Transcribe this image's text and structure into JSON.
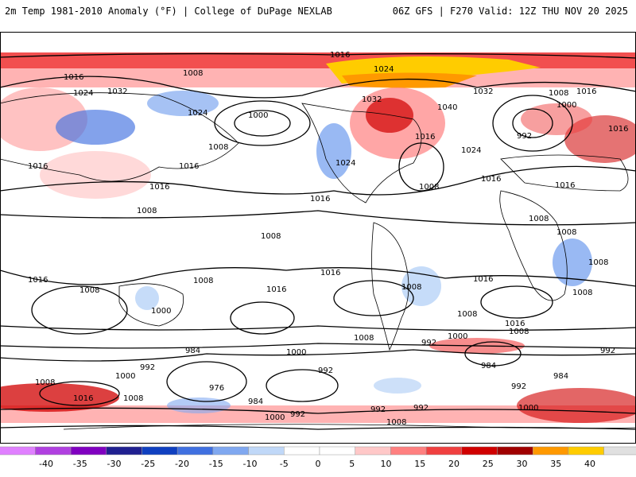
{
  "header": {
    "left_title": "2m Temp 1981-2010 Anomaly (°F) | College of DuPage NEXLAB",
    "right_title": "06Z GFS | F270 Valid: 12Z THU NOV 20 2025"
  },
  "colorbar": {
    "ticks": [
      "-40",
      "-35",
      "-30",
      "-25",
      "-20",
      "-15",
      "-10",
      "-5",
      "0",
      "5",
      "10",
      "15",
      "20",
      "25",
      "30",
      "35",
      "40"
    ],
    "colors": [
      "#e080ff",
      "#b040e0",
      "#8000c0",
      "#202090",
      "#1040c0",
      "#4070e0",
      "#80a8f0",
      "#c0d8f8",
      "#ffffff",
      "#ffffff",
      "#ffc8c8",
      "#ff8080",
      "#f04040",
      "#d00000",
      "#a00000",
      "#ff9900",
      "#ffcc00",
      "#e0e0e0"
    ]
  },
  "map": {
    "isobar_labels": [
      {
        "text": "1016"
      },
      {
        "text": "1024"
      },
      {
        "text": "1032"
      },
      {
        "text": "1016"
      },
      {
        "text": "1008"
      },
      {
        "text": "1024"
      },
      {
        "text": "1000"
      },
      {
        "text": "1024"
      },
      {
        "text": "1032"
      },
      {
        "text": "1040"
      },
      {
        "text": "1032"
      },
      {
        "text": "1016"
      },
      {
        "text": "1008"
      },
      {
        "text": "1000"
      },
      {
        "text": "1016"
      },
      {
        "text": "992"
      },
      {
        "text": "1024"
      },
      {
        "text": "1016"
      },
      {
        "text": "1024"
      },
      {
        "text": "1016"
      },
      {
        "text": "1008"
      },
      {
        "text": "1016"
      },
      {
        "text": "1016"
      },
      {
        "text": "1016"
      },
      {
        "text": "1008"
      },
      {
        "text": "1016"
      },
      {
        "text": "1008"
      },
      {
        "text": "1008"
      },
      {
        "text": "1008"
      },
      {
        "text": "1008"
      },
      {
        "text": "1008"
      },
      {
        "text": "1016"
      },
      {
        "text": "1016"
      },
      {
        "text": "1008"
      },
      {
        "text": "1016"
      },
      {
        "text": "1000"
      },
      {
        "text": "1008"
      },
      {
        "text": "1016"
      },
      {
        "text": "1008"
      },
      {
        "text": "1016"
      },
      {
        "text": "1016"
      },
      {
        "text": "1008"
      },
      {
        "text": "1008"
      },
      {
        "text": "1008"
      },
      {
        "text": "984"
      },
      {
        "text": "1000"
      },
      {
        "text": "1000"
      },
      {
        "text": "992"
      },
      {
        "text": "992"
      },
      {
        "text": "984"
      },
      {
        "text": "992"
      },
      {
        "text": "984"
      },
      {
        "text": "1000"
      },
      {
        "text": "992"
      },
      {
        "text": "976"
      },
      {
        "text": "1008"
      },
      {
        "text": "1016"
      },
      {
        "text": "1008"
      },
      {
        "text": "984"
      },
      {
        "text": "992"
      },
      {
        "text": "992"
      },
      {
        "text": "992"
      },
      {
        "text": "1000"
      },
      {
        "text": "992"
      },
      {
        "text": "1000"
      },
      {
        "text": "1008"
      },
      {
        "text": "1008"
      }
    ]
  }
}
